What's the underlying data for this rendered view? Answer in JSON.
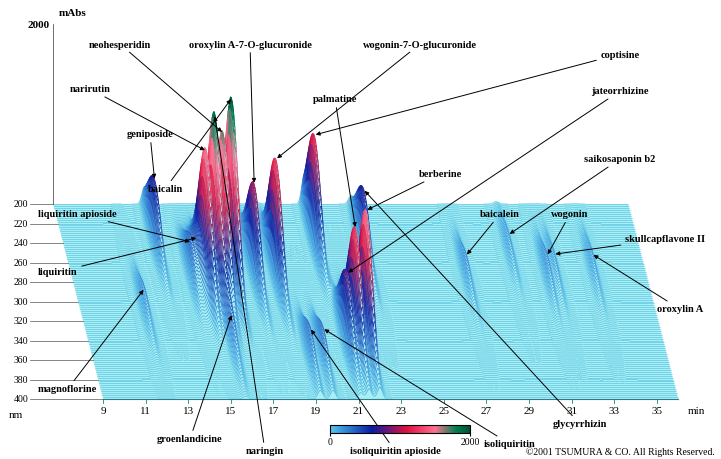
{
  "chart_data": {
    "type": "chromatogram_3d",
    "x_label": "min",
    "y_label": "nm",
    "z_label": "mAbs",
    "xlim": [
      9,
      36
    ],
    "xticks": [
      9,
      11,
      13,
      15,
      17,
      19,
      21,
      23,
      25,
      27,
      29,
      31,
      33,
      35
    ],
    "ylim": [
      200,
      400
    ],
    "yticks": [
      200,
      220,
      240,
      260,
      280,
      300,
      320,
      340,
      360,
      380,
      400
    ],
    "zlim": [
      0,
      2000
    ],
    "zticks": [
      2000
    ],
    "colorbar": {
      "range": [
        0,
        2000
      ],
      "ticks": [
        0,
        2000
      ]
    },
    "peaks": [
      {
        "name": "magnoflorine",
        "time": 12.0,
        "wavelength": 310,
        "absorbance": 250
      },
      {
        "name": "geniposide",
        "time": 13.3,
        "wavelength": 240,
        "absorbance": 700
      },
      {
        "name": "liquiritin apioside",
        "time": 14.6,
        "wavelength": 276,
        "absorbance": 400
      },
      {
        "name": "liquiritin",
        "time": 14.9,
        "wavelength": 276,
        "absorbance": 450
      },
      {
        "name": "narirutin",
        "time": 15.2,
        "wavelength": 284,
        "absorbance": 1500
      },
      {
        "name": "naringin",
        "time": 15.6,
        "wavelength": 284,
        "absorbance": 1900
      },
      {
        "name": "groenlandicine",
        "time": 15.7,
        "wavelength": 345,
        "absorbance": 350
      },
      {
        "name": "neohesperidin",
        "time": 16.0,
        "wavelength": 284,
        "absorbance": 1700
      },
      {
        "name": "baicalin",
        "time": 16.5,
        "wavelength": 276,
        "absorbance": 2000
      },
      {
        "name": "oroxylin A-7-O-glucuronide",
        "time": 17.6,
        "wavelength": 272,
        "absorbance": 1000
      },
      {
        "name": "wogonin-7-O-glucuronide",
        "time": 18.6,
        "wavelength": 274,
        "absorbance": 1300
      },
      {
        "name": "isoliquiritin apioside",
        "time": 19.2,
        "wavelength": 360,
        "absorbance": 350
      },
      {
        "name": "isoliquiritin",
        "time": 19.8,
        "wavelength": 360,
        "absorbance": 350
      },
      {
        "name": "coptisine",
        "time": 20.8,
        "wavelength": 240,
        "absorbance": 1200
      },
      {
        "name": "jateorrhizine",
        "time": 21.1,
        "wavelength": 345,
        "absorbance": 800
      },
      {
        "name": "palmatine",
        "time": 21.5,
        "wavelength": 345,
        "absorbance": 1300
      },
      {
        "name": "berberine",
        "time": 22.0,
        "wavelength": 345,
        "absorbance": 1500
      },
      {
        "name": "glycyrrhizin",
        "time": 23.0,
        "wavelength": 250,
        "absorbance": 700
      },
      {
        "name": "baicalein",
        "time": 27.5,
        "wavelength": 276,
        "absorbance": 250
      },
      {
        "name": "saikosaponin b2",
        "time": 29.8,
        "wavelength": 250,
        "absorbance": 200
      },
      {
        "name": "wogonin",
        "time": 31.3,
        "wavelength": 276,
        "absorbance": 250
      },
      {
        "name": "skullcapflavone II",
        "time": 31.7,
        "wavelength": 270,
        "absorbance": 200
      },
      {
        "name": "oroxylin A",
        "time": 33.5,
        "wavelength": 270,
        "absorbance": 200
      }
    ],
    "copyright": "©2001 TSUMURA & CO. All Rights Reserved."
  }
}
